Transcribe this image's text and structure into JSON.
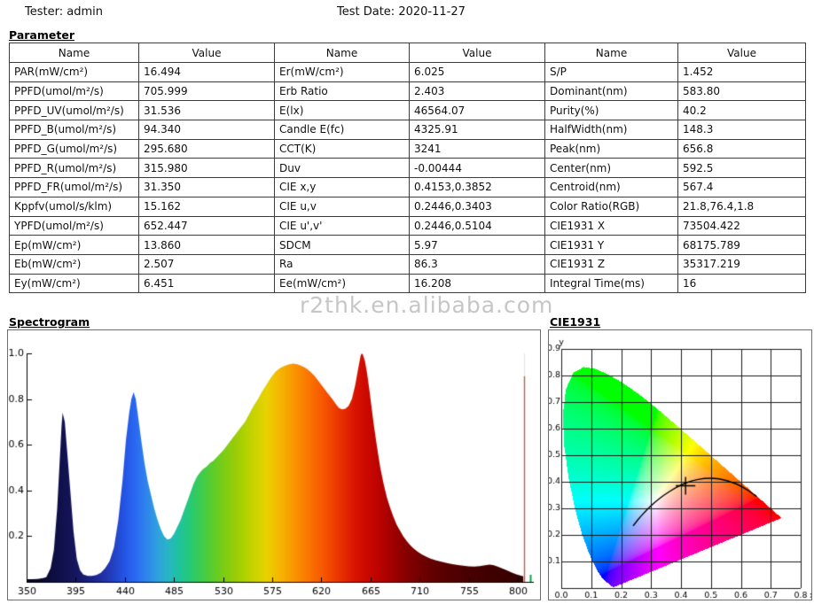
{
  "header": {
    "tester": "Tester: admin",
    "test_date": "Test Date: 2020-11-27"
  },
  "watermark": "r2thk.en.alibaba.com",
  "sections": {
    "parameter": "Parameter",
    "spectrogram": "Spectrogram",
    "cie": "CIE1931"
  },
  "table": {
    "header": {
      "name": "Name",
      "value": "Value"
    },
    "groups": [
      {
        "rows": [
          {
            "name": "PAR(mW/cm²)",
            "value": "16.494"
          },
          {
            "name": "PPFD(umol/m²/s)",
            "value": "705.999"
          },
          {
            "name": "PPFD_UV(umol/m²/s)",
            "value": "31.536"
          },
          {
            "name": "PPFD_B(umol/m²/s)",
            "value": "94.340"
          },
          {
            "name": "PPFD_G(umol/m²/s)",
            "value": "295.680"
          },
          {
            "name": "PPFD_R(umol/m²/s)",
            "value": "315.980"
          },
          {
            "name": "PPFD_FR(umol/m²/s)",
            "value": "31.350"
          },
          {
            "name": "Kppfv(umol/s/klm)",
            "value": "15.162"
          },
          {
            "name": "YPFD(umol/m²/s)",
            "value": "652.447"
          },
          {
            "name": "Ep(mW/cm²)",
            "value": "13.860"
          },
          {
            "name": "Eb(mW/cm²)",
            "value": "2.507"
          },
          {
            "name": "Ey(mW/cm²)",
            "value": "6.451"
          }
        ]
      },
      {
        "rows": [
          {
            "name": "Er(mW/cm²)",
            "value": "6.025"
          },
          {
            "name": "Erb Ratio",
            "value": "2.403"
          },
          {
            "name": "E(lx)",
            "value": "46564.07"
          },
          {
            "name": "Candle E(fc)",
            "value": "4325.91"
          },
          {
            "name": "CCT(K)",
            "value": "3241"
          },
          {
            "name": "Duv",
            "value": "-0.00444"
          },
          {
            "name": "CIE x,y",
            "value": "0.4153,0.3852"
          },
          {
            "name": "CIE u,v",
            "value": "0.2446,0.3403"
          },
          {
            "name": "CIE u',v'",
            "value": "0.2446,0.5104"
          },
          {
            "name": "SDCM",
            "value": "5.97"
          },
          {
            "name": "Ra",
            "value": "86.3"
          },
          {
            "name": "Ee(mW/cm²)",
            "value": "16.208"
          }
        ]
      },
      {
        "rows": [
          {
            "name": "S/P",
            "value": "1.452"
          },
          {
            "name": "Dominant(nm)",
            "value": "583.80"
          },
          {
            "name": "Purity(%)",
            "value": "40.2"
          },
          {
            "name": "HalfWidth(nm)",
            "value": "148.3"
          },
          {
            "name": "Peak(nm)",
            "value": "656.8"
          },
          {
            "name": "Center(nm)",
            "value": "592.5"
          },
          {
            "name": "Centroid(nm)",
            "value": "567.4"
          },
          {
            "name": "Color Ratio(RGB)",
            "value": "21.8,76.4,1.8"
          },
          {
            "name": "CIE1931 X",
            "value": "73504.422"
          },
          {
            "name": "CIE1931 Y",
            "value": "68175.789"
          },
          {
            "name": "CIE1931 Z",
            "value": "35317.219"
          },
          {
            "name": "Integral Time(ms)",
            "value": "16"
          }
        ]
      }
    ]
  },
  "chart_data": [
    {
      "id": "spectrogram",
      "type": "area",
      "title": "Spectrogram",
      "x_ticks": [
        350,
        395,
        440,
        485,
        530,
        575,
        620,
        665,
        710,
        755,
        800
      ],
      "y_ticks": [
        0.2,
        0.4,
        0.6,
        0.8,
        1.0
      ],
      "xlim": [
        350,
        815
      ],
      "ylim": [
        0,
        1.0
      ],
      "points": [
        [
          350,
          0.012
        ],
        [
          355,
          0.012
        ],
        [
          360,
          0.013
        ],
        [
          365,
          0.016
        ],
        [
          368,
          0.02
        ],
        [
          372,
          0.06
        ],
        [
          375,
          0.14
        ],
        [
          378,
          0.32
        ],
        [
          380,
          0.5
        ],
        [
          382,
          0.68
        ],
        [
          383,
          0.74
        ],
        [
          385,
          0.7
        ],
        [
          387,
          0.58
        ],
        [
          390,
          0.4
        ],
        [
          393,
          0.22
        ],
        [
          396,
          0.1
        ],
        [
          399,
          0.05
        ],
        [
          402,
          0.032
        ],
        [
          406,
          0.026
        ],
        [
          410,
          0.026
        ],
        [
          414,
          0.03
        ],
        [
          418,
          0.04
        ],
        [
          422,
          0.06
        ],
        [
          426,
          0.09
        ],
        [
          430,
          0.15
        ],
        [
          434,
          0.27
        ],
        [
          438,
          0.45
        ],
        [
          441,
          0.62
        ],
        [
          444,
          0.74
        ],
        [
          446,
          0.8
        ],
        [
          448,
          0.83
        ],
        [
          450,
          0.8
        ],
        [
          452,
          0.73
        ],
        [
          455,
          0.62
        ],
        [
          458,
          0.52
        ],
        [
          461,
          0.44
        ],
        [
          464,
          0.38
        ],
        [
          467,
          0.32
        ],
        [
          470,
          0.27
        ],
        [
          473,
          0.23
        ],
        [
          476,
          0.2
        ],
        [
          479,
          0.185
        ],
        [
          482,
          0.19
        ],
        [
          485,
          0.21
        ],
        [
          488,
          0.24
        ],
        [
          491,
          0.27
        ],
        [
          494,
          0.31
        ],
        [
          497,
          0.35
        ],
        [
          500,
          0.39
        ],
        [
          503,
          0.43
        ],
        [
          506,
          0.46
        ],
        [
          509,
          0.48
        ],
        [
          512,
          0.495
        ],
        [
          515,
          0.505
        ],
        [
          518,
          0.52
        ],
        [
          521,
          0.53
        ],
        [
          524,
          0.545
        ],
        [
          527,
          0.56
        ],
        [
          530,
          0.575
        ],
        [
          534,
          0.6
        ],
        [
          538,
          0.625
        ],
        [
          542,
          0.65
        ],
        [
          546,
          0.675
        ],
        [
          550,
          0.7
        ],
        [
          554,
          0.735
        ],
        [
          558,
          0.77
        ],
        [
          562,
          0.8
        ],
        [
          566,
          0.835
        ],
        [
          570,
          0.865
        ],
        [
          574,
          0.895
        ],
        [
          578,
          0.92
        ],
        [
          582,
          0.935
        ],
        [
          586,
          0.945
        ],
        [
          590,
          0.952
        ],
        [
          594,
          0.955
        ],
        [
          598,
          0.953
        ],
        [
          602,
          0.945
        ],
        [
          606,
          0.935
        ],
        [
          610,
          0.92
        ],
        [
          614,
          0.9
        ],
        [
          618,
          0.875
        ],
        [
          622,
          0.85
        ],
        [
          626,
          0.825
        ],
        [
          630,
          0.8
        ],
        [
          633,
          0.78
        ],
        [
          636,
          0.762
        ],
        [
          639,
          0.755
        ],
        [
          642,
          0.758
        ],
        [
          645,
          0.77
        ],
        [
          648,
          0.8
        ],
        [
          651,
          0.86
        ],
        [
          654,
          0.94
        ],
        [
          656,
          0.99
        ],
        [
          657,
          1.0
        ],
        [
          658,
          0.995
        ],
        [
          660,
          0.965
        ],
        [
          662,
          0.91
        ],
        [
          664,
          0.84
        ],
        [
          666,
          0.765
        ],
        [
          668,
          0.69
        ],
        [
          671,
          0.59
        ],
        [
          674,
          0.5
        ],
        [
          677,
          0.43
        ],
        [
          680,
          0.37
        ],
        [
          683,
          0.325
        ],
        [
          686,
          0.285
        ],
        [
          689,
          0.25
        ],
        [
          692,
          0.225
        ],
        [
          695,
          0.2
        ],
        [
          698,
          0.18
        ],
        [
          701,
          0.163
        ],
        [
          704,
          0.148
        ],
        [
          708,
          0.133
        ],
        [
          712,
          0.12
        ],
        [
          716,
          0.11
        ],
        [
          720,
          0.102
        ],
        [
          725,
          0.094
        ],
        [
          730,
          0.088
        ],
        [
          735,
          0.082
        ],
        [
          740,
          0.078
        ],
        [
          745,
          0.074
        ],
        [
          750,
          0.071
        ],
        [
          755,
          0.068
        ],
        [
          760,
          0.067
        ],
        [
          765,
          0.069
        ],
        [
          770,
          0.073
        ],
        [
          774,
          0.076
        ],
        [
          778,
          0.073
        ],
        [
          782,
          0.066
        ],
        [
          786,
          0.058
        ],
        [
          790,
          0.05
        ],
        [
          794,
          0.042
        ],
        [
          798,
          0.034
        ],
        [
          802,
          0.028
        ],
        [
          805,
          0.024
        ]
      ],
      "gradient_stops": [
        [
          350,
          "#05051e"
        ],
        [
          365,
          "#0a0a30"
        ],
        [
          380,
          "#10104a"
        ],
        [
          395,
          "#16165e"
        ],
        [
          410,
          "#1c2488"
        ],
        [
          425,
          "#2238b4"
        ],
        [
          440,
          "#2456e6"
        ],
        [
          450,
          "#2a6af2"
        ],
        [
          460,
          "#2e86ec"
        ],
        [
          470,
          "#2fa2de"
        ],
        [
          480,
          "#27b6c4"
        ],
        [
          490,
          "#1fc49e"
        ],
        [
          500,
          "#27ca74"
        ],
        [
          510,
          "#3ecc4e"
        ],
        [
          520,
          "#5acc2e"
        ],
        [
          530,
          "#7acc16"
        ],
        [
          540,
          "#96cc08"
        ],
        [
          550,
          "#b2d200"
        ],
        [
          560,
          "#ced400"
        ],
        [
          570,
          "#ead200"
        ],
        [
          580,
          "#f4ba00"
        ],
        [
          590,
          "#f8a200"
        ],
        [
          600,
          "#fa8a00"
        ],
        [
          610,
          "#fa7200"
        ],
        [
          620,
          "#f85a00"
        ],
        [
          630,
          "#f04200"
        ],
        [
          640,
          "#e62c00"
        ],
        [
          650,
          "#da1600"
        ],
        [
          660,
          "#ce0a00"
        ],
        [
          670,
          "#c00400"
        ],
        [
          680,
          "#ac0200"
        ],
        [
          690,
          "#960000"
        ],
        [
          700,
          "#820000"
        ],
        [
          715,
          "#6c0000"
        ],
        [
          730,
          "#5a0000"
        ],
        [
          745,
          "#4e0000"
        ],
        [
          760,
          "#460000"
        ],
        [
          775,
          "#400000"
        ],
        [
          790,
          "#3a0000"
        ],
        [
          805,
          "#360000"
        ]
      ],
      "marker_line": {
        "x_nm": 805.5,
        "color": "#bf5a52",
        "white_top_color": "#e8e8e8",
        "top_value": 0.9,
        "max_value": 1.0
      },
      "end_tick": {
        "x_nm": 811,
        "color": "#00a844"
      }
    },
    {
      "id": "cie1931",
      "type": "chromaticity",
      "title": "CIE1931",
      "x_tick_labels": [
        "0.0",
        "0.1",
        "0.2",
        "0.3",
        "0.4",
        "0.5",
        "0.6",
        "0.7",
        "0.8"
      ],
      "x_axis_letter": "x",
      "y_tick_labels": [
        "0.1",
        "0.2",
        "0.3",
        "0.4",
        "0.5",
        "0.6",
        "0.7",
        "0.8",
        "0.9"
      ],
      "y_axis_letter": "y",
      "xlim": [
        0,
        0.8
      ],
      "ylim": [
        0,
        0.9
      ],
      "locus": [
        [
          0.1741,
          0.005
        ],
        [
          0.1733,
          0.0048
        ],
        [
          0.1714,
          0.0051
        ],
        [
          0.1689,
          0.0069
        ],
        [
          0.1644,
          0.0109
        ],
        [
          0.1566,
          0.0177
        ],
        [
          0.144,
          0.0297
        ],
        [
          0.1355,
          0.0399
        ],
        [
          0.1241,
          0.0578
        ],
        [
          0.1096,
          0.0868
        ],
        [
          0.0913,
          0.1327
        ],
        [
          0.0687,
          0.2007
        ],
        [
          0.0454,
          0.295
        ],
        [
          0.0235,
          0.4127
        ],
        [
          0.0082,
          0.5384
        ],
        [
          0.0039,
          0.6548
        ],
        [
          0.0139,
          0.7502
        ],
        [
          0.0389,
          0.812
        ],
        [
          0.0743,
          0.8338
        ],
        [
          0.1142,
          0.8262
        ],
        [
          0.1547,
          0.8059
        ],
        [
          0.1929,
          0.7816
        ],
        [
          0.2296,
          0.7543
        ],
        [
          0.2658,
          0.7243
        ],
        [
          0.3016,
          0.6923
        ],
        [
          0.3373,
          0.6589
        ],
        [
          0.3731,
          0.6245
        ],
        [
          0.4087,
          0.5896
        ],
        [
          0.4441,
          0.5547
        ],
        [
          0.4788,
          0.5202
        ],
        [
          0.5125,
          0.4866
        ],
        [
          0.5448,
          0.4544
        ],
        [
          0.5752,
          0.4242
        ],
        [
          0.6029,
          0.3965
        ],
        [
          0.627,
          0.3725
        ],
        [
          0.6658,
          0.334
        ],
        [
          0.6915,
          0.3083
        ],
        [
          0.7079,
          0.292
        ],
        [
          0.719,
          0.2809
        ],
        [
          0.726,
          0.274
        ],
        [
          0.7334,
          0.2666
        ],
        [
          0.7347,
          0.2653
        ]
      ],
      "planckian": [
        [
          0.24,
          0.234
        ],
        [
          0.2565,
          0.2577
        ],
        [
          0.2637,
          0.2673
        ],
        [
          0.2807,
          0.2884
        ],
        [
          0.2952,
          0.3048
        ],
        [
          0.3064,
          0.3166
        ],
        [
          0.3221,
          0.3318
        ],
        [
          0.3451,
          0.3516
        ],
        [
          0.3805,
          0.3768
        ],
        [
          0.4053,
          0.3907
        ],
        [
          0.4369,
          0.4041
        ],
        [
          0.477,
          0.4137
        ],
        [
          0.5267,
          0.4133
        ],
        [
          0.5857,
          0.3931
        ],
        [
          0.625,
          0.3675
        ],
        [
          0.6528,
          0.3444
        ]
      ],
      "point": {
        "x": 0.4153,
        "y": 0.3852,
        "marker": "cross",
        "color": "#000000"
      }
    }
  ]
}
